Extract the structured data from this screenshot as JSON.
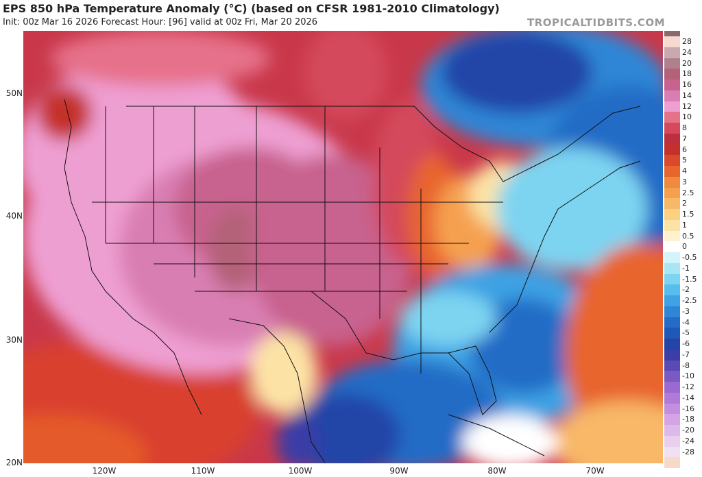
{
  "header": {
    "title": "EPS 850 hPa Temperature Anomaly (°C) (based on CFSR 1981-2010 Climatology)",
    "subtitle": "Init: 00z Mar 16 2026   Forecast Hour: [96]   valid at 00z Fri, Mar 20 2026",
    "watermark": "TROPICALTIDBITS.COM"
  },
  "axes": {
    "lat_labels": [
      "50N",
      "40N",
      "30N",
      "20N"
    ],
    "lon_labels": [
      "120W",
      "110W",
      "100W",
      "90W",
      "80W",
      "70W"
    ]
  },
  "colorbar": {
    "entries": [
      {
        "label": "28",
        "color": "#f7d9d0"
      },
      {
        "label": "24",
        "color": "#c9a8ae"
      },
      {
        "label": "20",
        "color": "#b0808e"
      },
      {
        "label": "18",
        "color": "#b36278"
      },
      {
        "label": "16",
        "color": "#c8628e"
      },
      {
        "label": "14",
        "color": "#d97eb2"
      },
      {
        "label": "12",
        "color": "#ee9fd2"
      },
      {
        "label": "10",
        "color": "#e6718a"
      },
      {
        "label": "8",
        "color": "#d44a5c"
      },
      {
        "label": "7",
        "color": "#bd2f3c"
      },
      {
        "label": "6",
        "color": "#c5302b"
      },
      {
        "label": "5",
        "color": "#d84a2a"
      },
      {
        "label": "4",
        "color": "#e8652e"
      },
      {
        "label": "3",
        "color": "#f08a3d"
      },
      {
        "label": "2.5",
        "color": "#f5a04f"
      },
      {
        "label": "2",
        "color": "#f8b868"
      },
      {
        "label": "1.5",
        "color": "#fad083"
      },
      {
        "label": "1",
        "color": "#fce3a5"
      },
      {
        "label": "0.5",
        "color": "#fff3cf"
      },
      {
        "label": "0",
        "color": "#ffffff"
      },
      {
        "label": "-0.5",
        "color": "#d4f4fb"
      },
      {
        "label": "-1",
        "color": "#a8e6f6"
      },
      {
        "label": "-1.5",
        "color": "#7dd4f1"
      },
      {
        "label": "-2",
        "color": "#56bdec"
      },
      {
        "label": "-2.5",
        "color": "#3ea2e4"
      },
      {
        "label": "-3",
        "color": "#2e86d6"
      },
      {
        "label": "-4",
        "color": "#246cc6"
      },
      {
        "label": "-5",
        "color": "#2058b8"
      },
      {
        "label": "-6",
        "color": "#2444a8"
      },
      {
        "label": "-7",
        "color": "#3a3ea6"
      },
      {
        "label": "-8",
        "color": "#5a4bb4"
      },
      {
        "label": "-10",
        "color": "#7a5ac2"
      },
      {
        "label": "-12",
        "color": "#9a6ad0"
      },
      {
        "label": "-14",
        "color": "#b07ad8"
      },
      {
        "label": "-16",
        "color": "#c48ee0"
      },
      {
        "label": "-18",
        "color": "#d3a4e6"
      },
      {
        "label": "-20",
        "color": "#ddb9e9"
      },
      {
        "label": "-24",
        "color": "#e8cfee"
      },
      {
        "label": "-28",
        "color": "#f1e0f2"
      },
      {
        "label": "",
        "color": "#f7d9c9"
      }
    ],
    "top_cap_color": "#8a6a6a"
  }
}
